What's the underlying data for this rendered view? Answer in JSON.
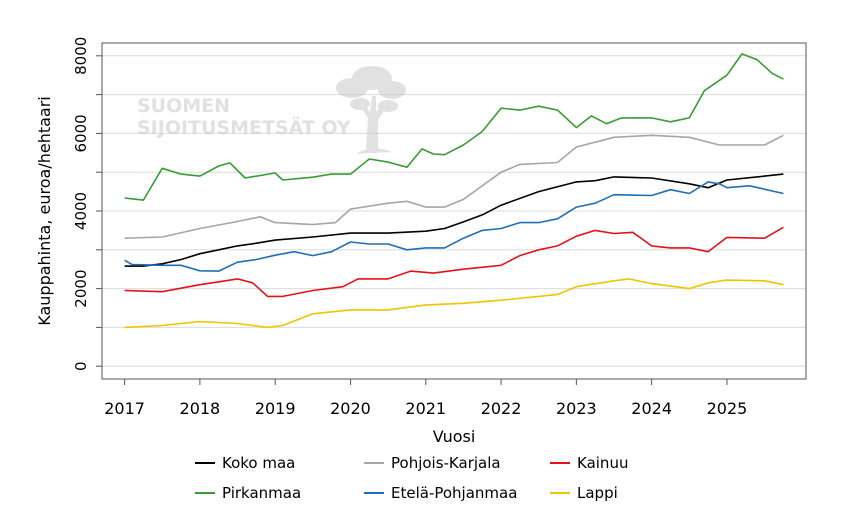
{
  "watermark": {
    "line1": "SUOMEN",
    "line2": "SIJOITUSMETSÄT OY"
  },
  "chart_data": {
    "type": "line",
    "title": "",
    "xlabel": "Vuosi",
    "ylabel": "Kauppahinta, euroa/hehtaari",
    "xlim": [
      2016.7,
      2026.05
    ],
    "ylim": [
      -330,
      8330
    ],
    "xticks": [
      2017,
      2018,
      2019,
      2020,
      2021,
      2022,
      2023,
      2024,
      2025
    ],
    "yticks": [
      0,
      2000,
      4000,
      6000,
      8000
    ],
    "ygrid": [
      0,
      1000,
      2000,
      3000,
      4000,
      5000,
      6000,
      7000,
      8000
    ],
    "grid": "horizontal",
    "legend_placement": "bottom",
    "series": [
      {
        "name": "Koko maa",
        "color": "#000000",
        "x": [
          2017,
          2017.25,
          2017.5,
          2017.75,
          2018,
          2018.25,
          2018.5,
          2018.75,
          2019,
          2019.5,
          2020,
          2020.5,
          2021,
          2021.25,
          2021.5,
          2021.75,
          2022,
          2022.5,
          2023,
          2023.25,
          2023.5,
          2024,
          2024.5,
          2024.75,
          2025,
          2025.5,
          2025.75
        ],
        "y": [
          2580,
          2580,
          2640,
          2750,
          2900,
          3000,
          3100,
          3170,
          3250,
          3330,
          3430,
          3430,
          3480,
          3550,
          3720,
          3900,
          4150,
          4500,
          4750,
          4780,
          4880,
          4850,
          4700,
          4600,
          4800,
          4900,
          4950
        ]
      },
      {
        "name": "Pohjois-Karjala",
        "color": "#a6a6a6",
        "x": [
          2017,
          2017.5,
          2018,
          2018.5,
          2018.8,
          2019,
          2019.5,
          2019.8,
          2020,
          2020.5,
          2020.75,
          2021,
          2021.25,
          2021.5,
          2022,
          2022.25,
          2022.75,
          2023,
          2023.5,
          2024,
          2024.5,
          2024.9,
          2025.5,
          2025.75
        ],
        "y": [
          3300,
          3330,
          3550,
          3730,
          3850,
          3700,
          3650,
          3700,
          4050,
          4200,
          4250,
          4100,
          4100,
          4300,
          5000,
          5200,
          5250,
          5650,
          5900,
          5950,
          5900,
          5700,
          5700,
          5950
        ]
      },
      {
        "name": "Kainuu",
        "color": "#e3121b",
        "x": [
          2017,
          2017.5,
          2018,
          2018.5,
          2018.7,
          2018.9,
          2019.1,
          2019.5,
          2019.9,
          2020.1,
          2020.5,
          2020.8,
          2021.1,
          2021.5,
          2022,
          2022.25,
          2022.5,
          2022.75,
          2023,
          2023.25,
          2023.5,
          2023.75,
          2024,
          2024.25,
          2024.5,
          2024.75,
          2025,
          2025.5,
          2025.75
        ],
        "y": [
          1950,
          1920,
          2100,
          2250,
          2150,
          1800,
          1800,
          1950,
          2050,
          2250,
          2250,
          2450,
          2400,
          2500,
          2600,
          2850,
          3000,
          3100,
          3350,
          3500,
          3420,
          3450,
          3100,
          3050,
          3050,
          2950,
          3320,
          3300,
          3580
        ]
      },
      {
        "name": "Pirkanmaa",
        "color": "#3a9b35",
        "x": [
          2017,
          2017.25,
          2017.5,
          2017.75,
          2018,
          2018.25,
          2018.4,
          2018.6,
          2019,
          2019.1,
          2019.5,
          2019.75,
          2020,
          2020.25,
          2020.5,
          2020.75,
          2020.95,
          2021.1,
          2021.25,
          2021.5,
          2021.75,
          2022,
          2022.25,
          2022.5,
          2022.75,
          2023,
          2023.2,
          2023.4,
          2023.6,
          2024,
          2024.25,
          2024.5,
          2024.7,
          2025,
          2025.2,
          2025.4,
          2025.6,
          2025.75
        ],
        "y": [
          4335,
          4280,
          5100,
          4950,
          4900,
          5160,
          5240,
          4850,
          4980,
          4800,
          4870,
          4950,
          4950,
          5340,
          5260,
          5130,
          5600,
          5470,
          5450,
          5700,
          6050,
          6650,
          6600,
          6700,
          6600,
          6150,
          6450,
          6250,
          6400,
          6400,
          6300,
          6400,
          7100,
          7500,
          8050,
          7900,
          7550,
          7400
        ]
      },
      {
        "name": "Etelä-Pohjanmaa",
        "color": "#1f6fb5",
        "x": [
          2017,
          2017.1,
          2017.5,
          2017.75,
          2018,
          2018.25,
          2018.5,
          2018.75,
          2019,
          2019.25,
          2019.5,
          2019.75,
          2020,
          2020.25,
          2020.5,
          2020.75,
          2021,
          2021.25,
          2021.5,
          2021.75,
          2022,
          2022.25,
          2022.5,
          2022.75,
          2023,
          2023.25,
          2023.5,
          2024,
          2024.25,
          2024.5,
          2024.75,
          2024.9,
          2025,
          2025.3,
          2025.75
        ],
        "y": [
          2730,
          2620,
          2600,
          2600,
          2460,
          2450,
          2680,
          2750,
          2860,
          2950,
          2850,
          2950,
          3200,
          3150,
          3150,
          3000,
          3050,
          3050,
          3300,
          3500,
          3550,
          3700,
          3700,
          3800,
          4100,
          4200,
          4420,
          4400,
          4550,
          4450,
          4750,
          4700,
          4600,
          4650,
          4450
        ]
      },
      {
        "name": "Lappi",
        "color": "#f0c400",
        "x": [
          2017,
          2017.5,
          2018,
          2018.5,
          2018.9,
          2019.1,
          2019.5,
          2020,
          2020.5,
          2021,
          2021.5,
          2022,
          2022.5,
          2022.75,
          2023,
          2023.5,
          2023.7,
          2024,
          2024.5,
          2024.75,
          2025,
          2025.5,
          2025.75
        ],
        "y": [
          1000,
          1050,
          1150,
          1100,
          1000,
          1050,
          1350,
          1450,
          1450,
          1580,
          1620,
          1700,
          1800,
          1850,
          2050,
          2200,
          2250,
          2130,
          2000,
          2150,
          2220,
          2200,
          2100
        ]
      }
    ]
  }
}
